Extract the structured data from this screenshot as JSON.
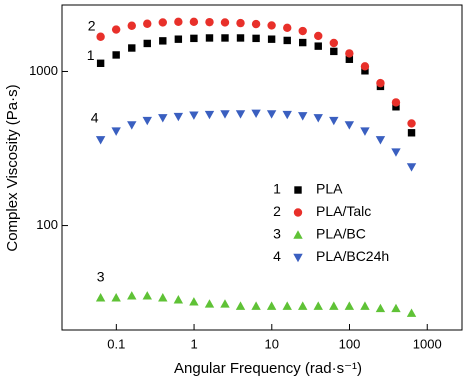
{
  "chart_data": {
    "type": "scatter",
    "x_label": "Angular Frequency (rad·s⁻¹)",
    "y_label": "Complex Viscosity (Pa·s)",
    "x_log": true,
    "y_log": true,
    "xlim": [
      0.02,
      2800
    ],
    "ylim": [
      21,
      2700
    ],
    "xticks": [
      0.1,
      1,
      10,
      100,
      1000
    ],
    "yticks": [
      100,
      1000
    ],
    "x": [
      0.0628,
      0.0995,
      0.158,
      0.25,
      0.396,
      0.628,
      0.995,
      1.58,
      2.5,
      3.96,
      6.28,
      9.95,
      15.8,
      25,
      39.6,
      62.8,
      99.5,
      158,
      250,
      396,
      628
    ],
    "series": [
      {
        "label": "1",
        "name": "PLA",
        "color": "#000000",
        "marker": "square",
        "values": [
          1130,
          1280,
          1420,
          1520,
          1580,
          1620,
          1640,
          1650,
          1650,
          1650,
          1640,
          1620,
          1590,
          1540,
          1460,
          1350,
          1200,
          1010,
          800,
          590,
          400
        ]
      },
      {
        "label": "2",
        "name": "PLA/Talc",
        "color": "#e8302a",
        "marker": "circle",
        "values": [
          1680,
          1870,
          1980,
          2040,
          2080,
          2100,
          2100,
          2090,
          2080,
          2060,
          2030,
          1990,
          1920,
          1830,
          1700,
          1530,
          1310,
          1080,
          840,
          630,
          460
        ]
      },
      {
        "label": "3",
        "name": "PLA/BC",
        "color": "#5fc236",
        "marker": "triangle-up",
        "values": [
          34,
          34,
          35,
          35,
          34,
          33,
          32,
          31,
          31,
          30,
          30,
          30,
          30,
          30,
          30,
          30,
          30,
          30,
          29,
          29,
          27
        ]
      },
      {
        "label": "4",
        "name": "PLA/BC24h",
        "color": "#3a5fc0",
        "marker": "triangle-down",
        "values": [
          360,
          410,
          450,
          480,
          500,
          510,
          520,
          525,
          530,
          530,
          535,
          530,
          525,
          515,
          500,
          480,
          450,
          410,
          360,
          300,
          240
        ]
      }
    ]
  }
}
